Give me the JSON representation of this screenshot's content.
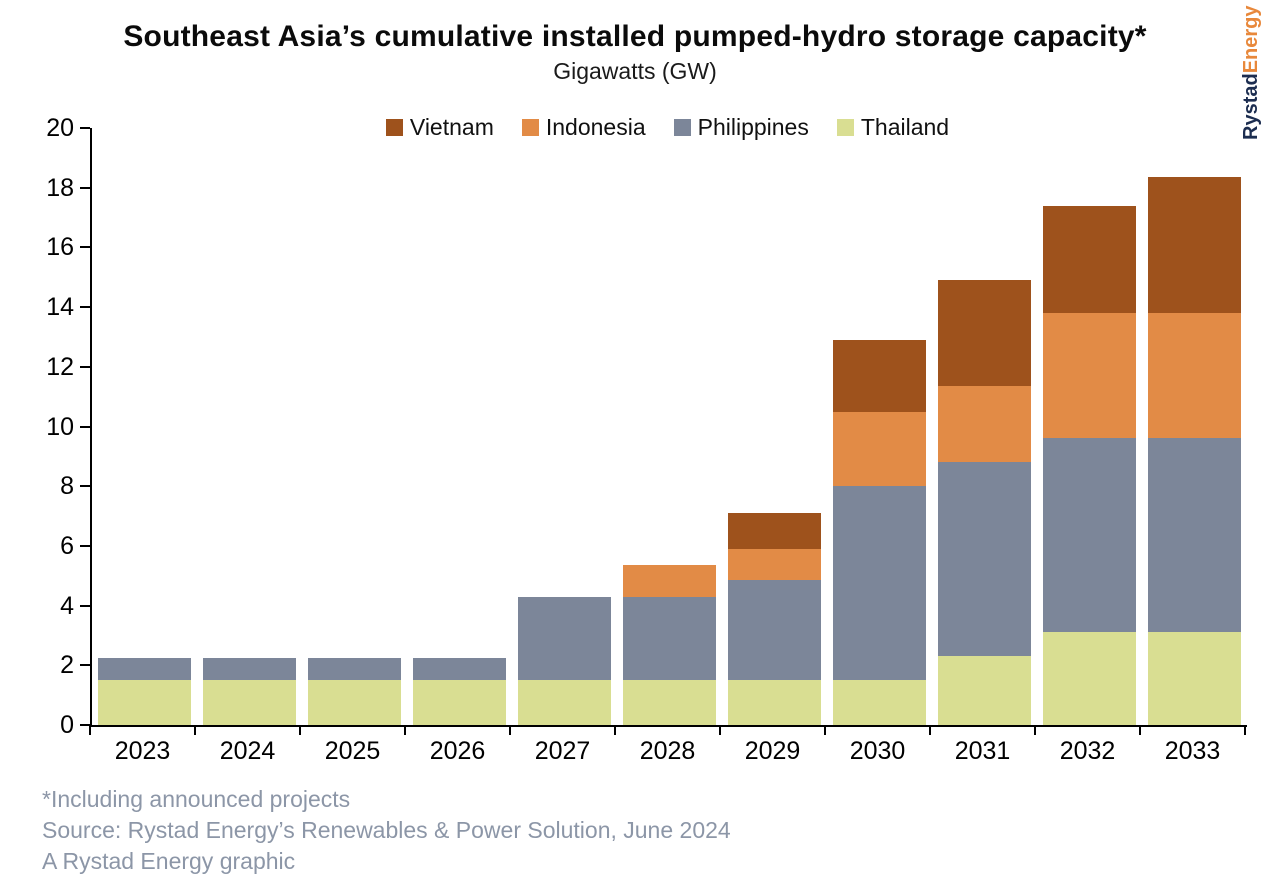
{
  "title": "Southeast Asia’s cumulative installed pumped-hydro storage capacity*",
  "subtitle": "Gigawatts (GW)",
  "brand": {
    "part1": "Rystad",
    "part2": "Energy"
  },
  "colors": {
    "vietnam": "#9e521c",
    "indonesia": "#e28b46",
    "philippines": "#7c8699",
    "thailand": "#d9de92",
    "axis": "#000000",
    "footer_text": "#8c96a7",
    "brand_navy": "#1c2d50",
    "brand_orange": "#e8883b"
  },
  "chart_data": {
    "type": "bar",
    "stacked": true,
    "title": "Southeast Asia’s cumulative installed pumped-hydro storage capacity*",
    "ylabel": "Gigawatts (GW)",
    "xlabel": "",
    "categories": [
      "2023",
      "2024",
      "2025",
      "2026",
      "2027",
      "2028",
      "2029",
      "2030",
      "2031",
      "2032",
      "2033"
    ],
    "series": [
      {
        "name": "Vietnam",
        "color": "#9e521c",
        "values": [
          0,
          0,
          0,
          0,
          0,
          0,
          1.2,
          2.4,
          3.55,
          3.6,
          4.55
        ]
      },
      {
        "name": "Indonesia",
        "color": "#e28b46",
        "values": [
          0,
          0,
          0,
          0,
          0,
          1.05,
          1.05,
          2.5,
          2.55,
          4.2,
          4.2
        ]
      },
      {
        "name": "Philippines",
        "color": "#7c8699",
        "values": [
          0.75,
          0.75,
          0.75,
          0.75,
          2.8,
          2.8,
          3.35,
          6.5,
          6.5,
          6.5,
          6.5
        ]
      },
      {
        "name": "Thailand",
        "color": "#d9de92",
        "values": [
          1.5,
          1.5,
          1.5,
          1.5,
          1.5,
          1.5,
          1.5,
          1.5,
          2.3,
          3.1,
          3.1
        ]
      }
    ],
    "stack_order_bottom_to_top": [
      "Thailand",
      "Philippines",
      "Indonesia",
      "Vietnam"
    ],
    "legend_order": [
      "Vietnam",
      "Indonesia",
      "Philippines",
      "Thailand"
    ],
    "cumulative_totals": [
      2.25,
      2.25,
      2.25,
      2.25,
      4.3,
      5.35,
      7.1,
      12.9,
      14.9,
      17.4,
      18.35
    ],
    "ylim": [
      0,
      20
    ],
    "ytick_step": 2,
    "grid": false,
    "legend_position": "top"
  },
  "footer": {
    "note": "*Including announced projects",
    "source": "Source: Rystad Energy’s Renewables & Power Solution, June 2024",
    "credit": "A Rystad Energy graphic"
  }
}
